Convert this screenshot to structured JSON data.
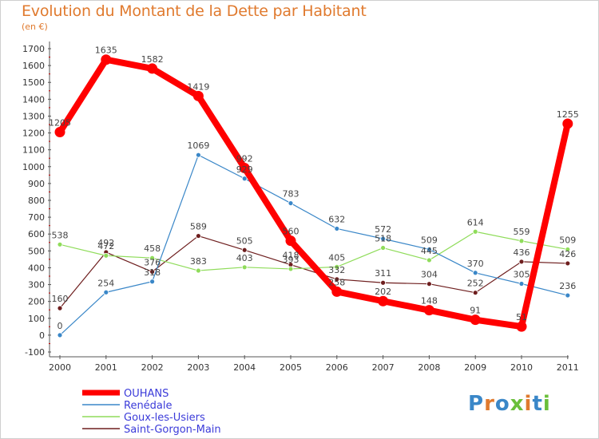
{
  "chart_data": {
    "type": "line",
    "title": "Evolution du Montant de la Dette par Habitant",
    "subtitle": "(en €)",
    "categories": [
      "2000",
      "2001",
      "2002",
      "2003",
      "2004",
      "2005",
      "2006",
      "2007",
      "2008",
      "2009",
      "2010",
      "2011"
    ],
    "ylim": [
      -100,
      1700
    ],
    "yticks": [
      -100,
      0,
      100,
      200,
      300,
      400,
      500,
      600,
      700,
      800,
      900,
      1000,
      1100,
      1200,
      1300,
      1400,
      1500,
      1600,
      1700
    ],
    "grid": false,
    "legend_position": "bottom-left",
    "series": [
      {
        "name": "OUHANS",
        "color": "#ff0000",
        "values": [
          1205,
          1635,
          1582,
          1419,
          992,
          560,
          258,
          202,
          148,
          91,
          51,
          1255
        ]
      },
      {
        "name": "Renédale",
        "color": "#3a87c8",
        "values": [
          0,
          254,
          318,
          1069,
          929,
          783,
          632,
          572,
          509,
          370,
          305,
          236
        ]
      },
      {
        "name": "Goux-les-Usiers",
        "color": "#8fdc5a",
        "values": [
          538,
          472,
          458,
          383,
          403,
          393,
          405,
          518,
          445,
          614,
          559,
          509
        ]
      },
      {
        "name": "Saint-Gorgon-Main",
        "color": "#6e1e1e",
        "values": [
          160,
          492,
          376,
          589,
          505,
          418,
          332,
          311,
          304,
          252,
          436,
          426
        ]
      }
    ]
  },
  "logo": {
    "text": "Proxiti",
    "colors": [
      "#3a87c8",
      "#e07a2e",
      "#3a87c8",
      "#6abf3a",
      "#e07a2e",
      "#3a87c8",
      "#6abf3a"
    ]
  }
}
